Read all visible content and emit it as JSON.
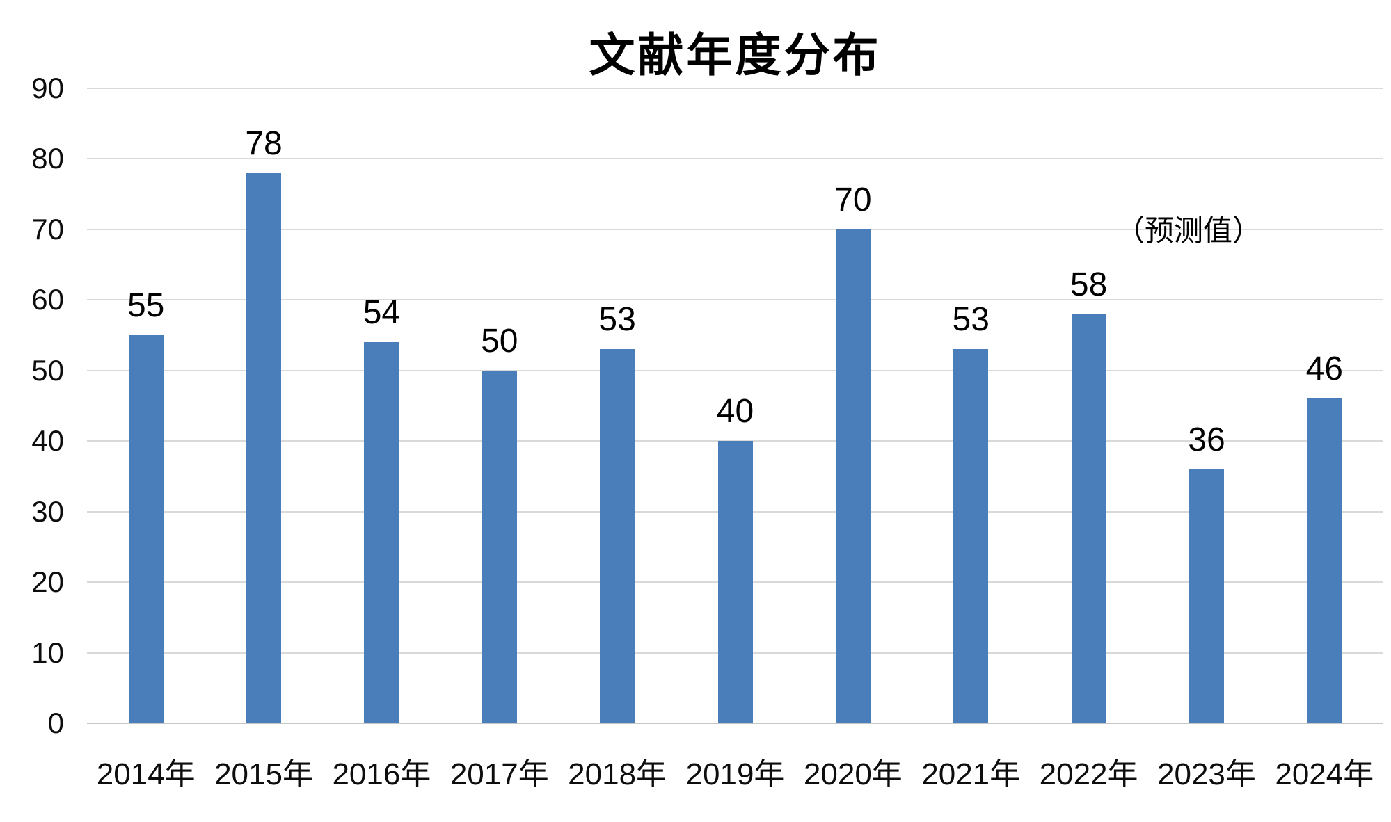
{
  "chart_data": {
    "type": "bar",
    "title": "文献年度分布",
    "categories": [
      "2014年",
      "2015年",
      "2016年",
      "2017年",
      "2018年",
      "2019年",
      "2020年",
      "2021年",
      "2022年",
      "2023年",
      "2024年"
    ],
    "values": [
      55,
      78,
      54,
      50,
      53,
      40,
      70,
      53,
      58,
      36,
      46
    ],
    "annotation": "（预测值）",
    "annotation_target_category": "2024年",
    "xlabel": "",
    "ylabel": "",
    "ylim": [
      0,
      90
    ],
    "y_ticks": [
      0,
      10,
      20,
      30,
      40,
      50,
      60,
      70,
      80,
      90
    ],
    "grid": "horizontal-on",
    "legend": "none",
    "bar_color": "#4a7ebb",
    "gridline_color": "#d9d9d9",
    "text_color": "#000000",
    "background_color": "#ffffff"
  }
}
